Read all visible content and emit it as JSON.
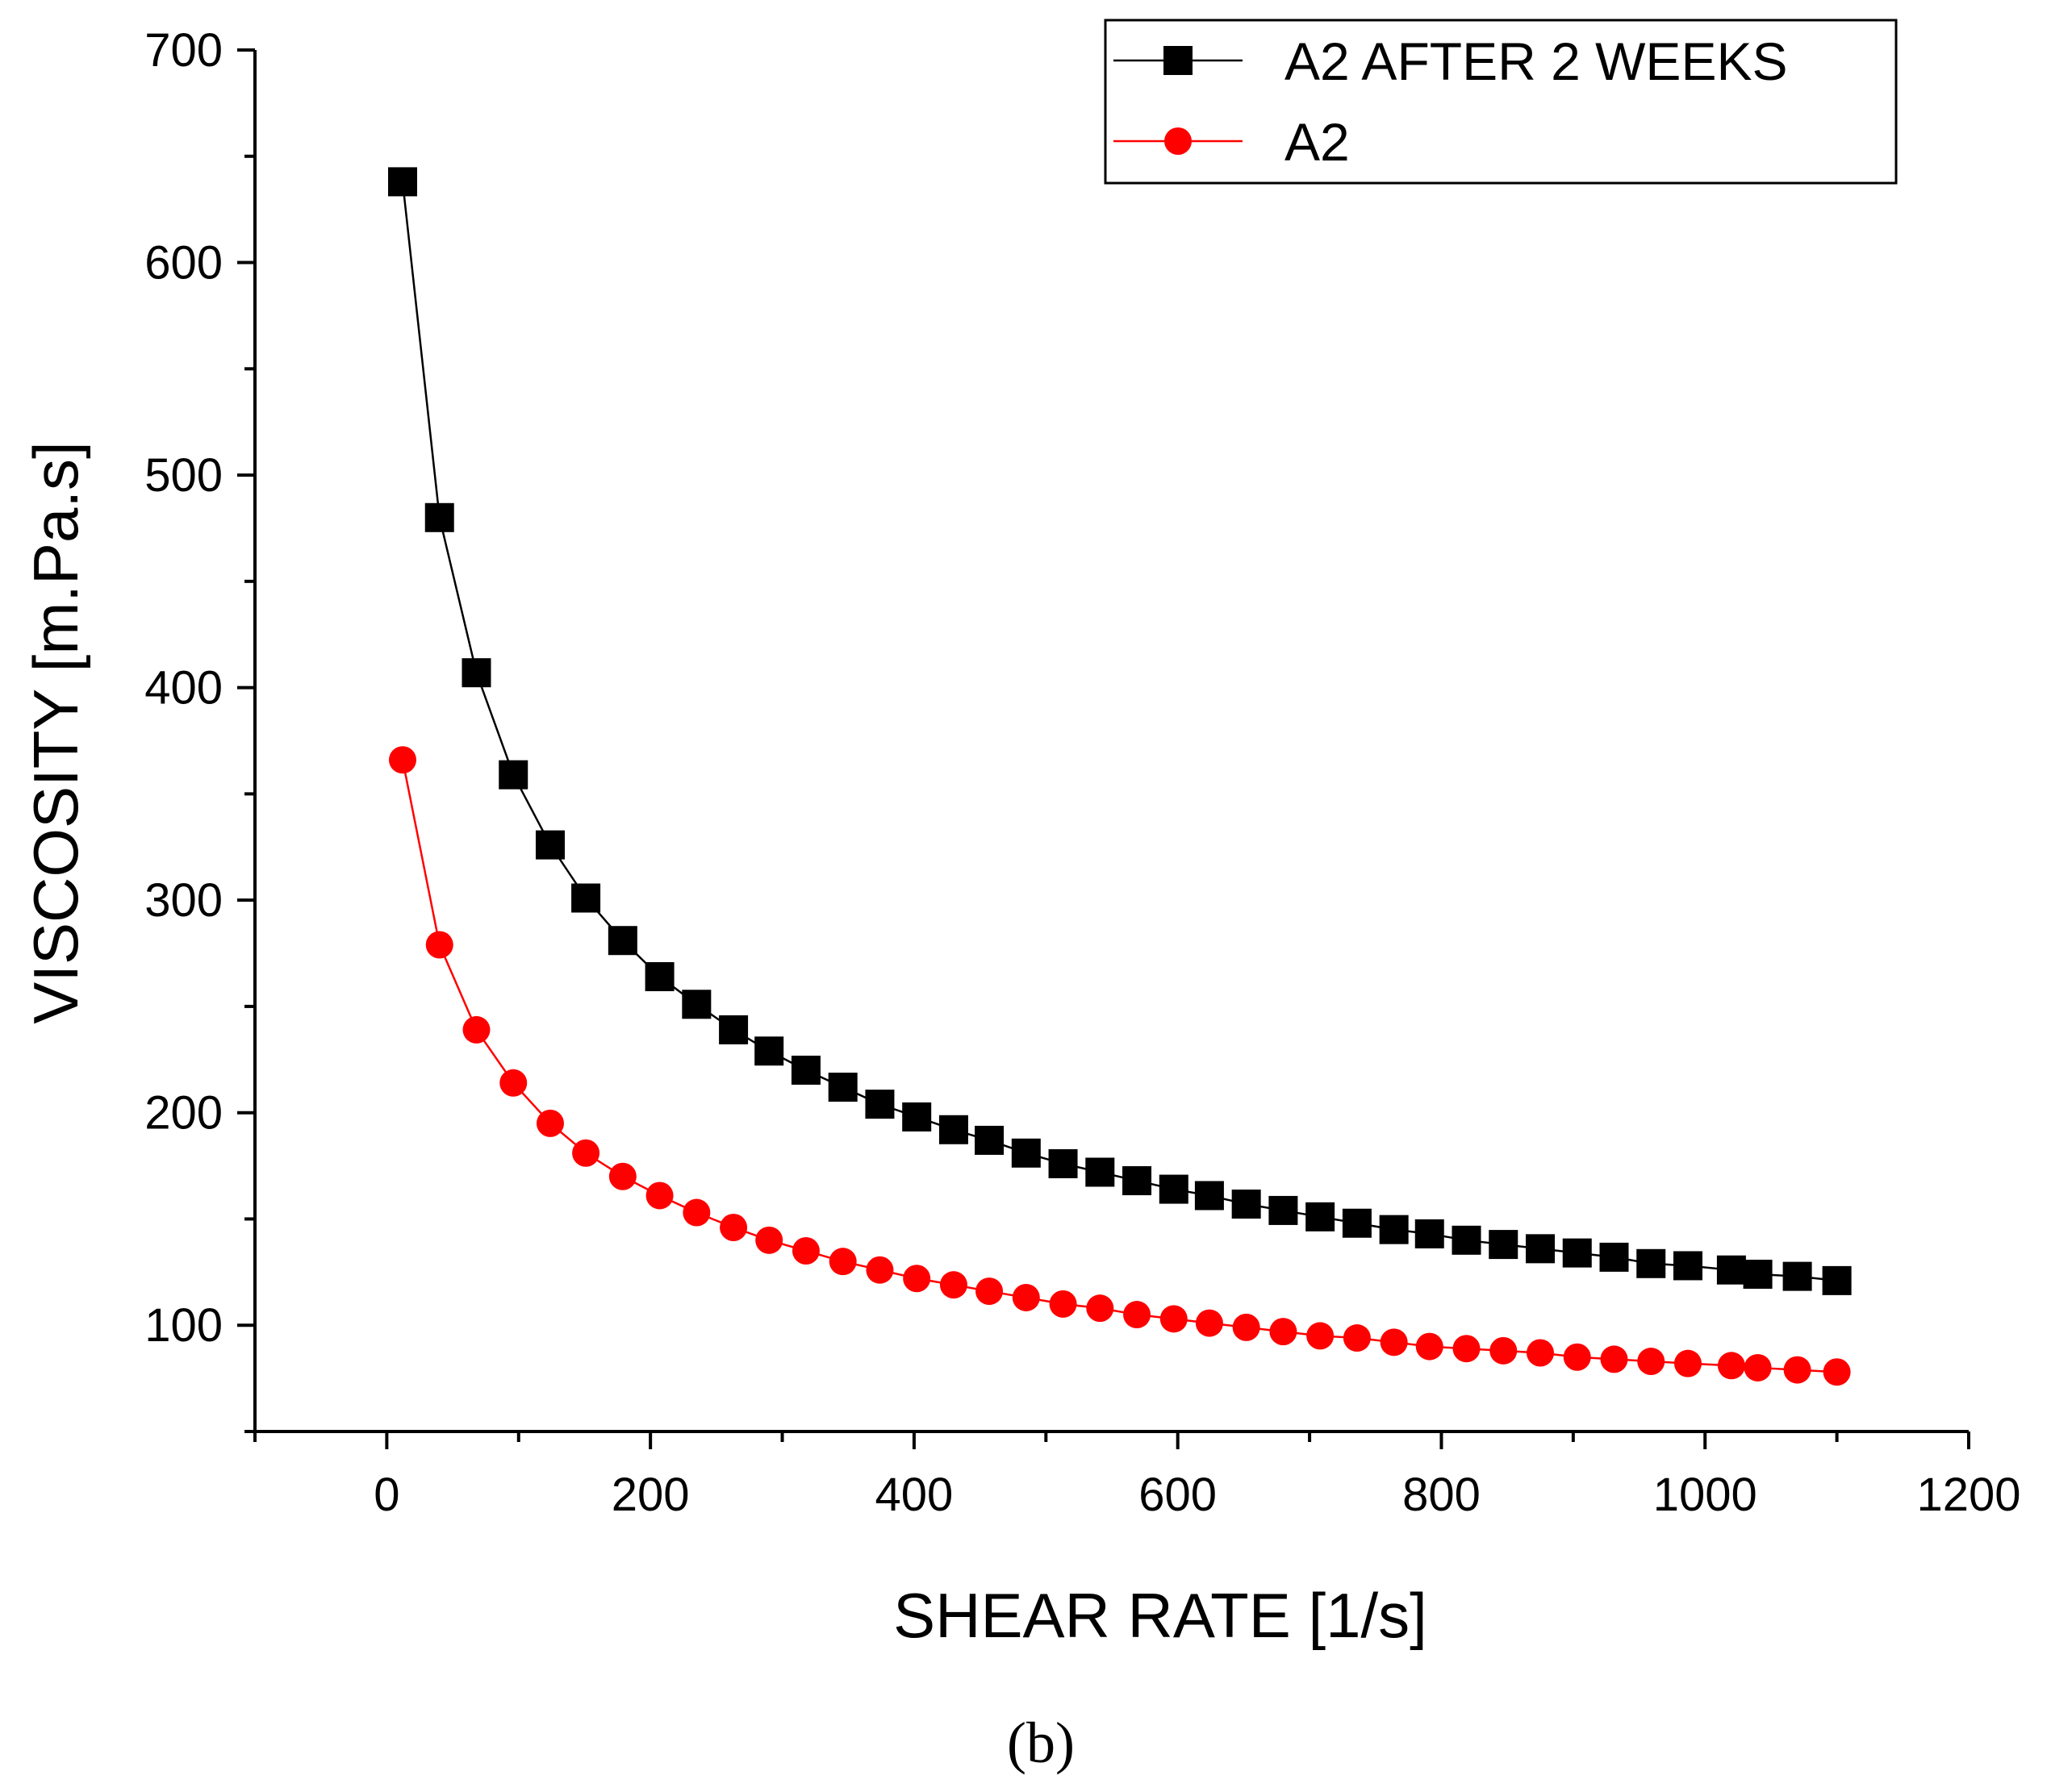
{
  "chart_data": {
    "type": "line",
    "xlabel": "SHEAR RATE [1/s]",
    "ylabel": "VISCOSITY [m.Pa.s]",
    "xlim": [
      -100,
      1200
    ],
    "ylim": [
      50,
      700
    ],
    "xticks": [
      0,
      200,
      400,
      600,
      800,
      1000,
      1200
    ],
    "yticks": [
      100,
      200,
      300,
      400,
      500,
      600,
      700
    ],
    "grid": false,
    "legend_position": "top-right",
    "panel_label": "(b)",
    "series": [
      {
        "name": "A2 AFTER 2 WEEKS",
        "color": "#000000",
        "marker": "square",
        "x": [
          12,
          40,
          68,
          96,
          124,
          151,
          179,
          207,
          235,
          263,
          290,
          318,
          346,
          374,
          402,
          430,
          457,
          485,
          513,
          541,
          569,
          597,
          624,
          652,
          680,
          708,
          736,
          764,
          791,
          819,
          847,
          875,
          903,
          931,
          959,
          987,
          1020,
          1040,
          1070,
          1100
        ],
        "y": [
          638,
          480,
          407,
          359,
          326,
          301,
          281,
          264,
          251,
          239,
          229,
          220,
          212,
          204,
          198,
          192,
          187,
          181,
          176,
          172,
          168,
          164,
          161,
          157,
          154,
          151,
          148,
          145,
          143,
          140,
          138,
          136,
          134,
          132,
          129,
          128,
          126,
          124,
          123,
          121
        ]
      },
      {
        "name": "A2",
        "color": "#ff0000",
        "marker": "circle",
        "x": [
          12,
          40,
          68,
          96,
          124,
          151,
          179,
          207,
          235,
          263,
          290,
          318,
          346,
          374,
          402,
          430,
          457,
          485,
          513,
          541,
          569,
          597,
          624,
          652,
          680,
          708,
          736,
          764,
          791,
          819,
          847,
          875,
          903,
          931,
          959,
          987,
          1020,
          1040,
          1070,
          1100
        ],
        "y": [
          366,
          279,
          239,
          214,
          195,
          181,
          170,
          161,
          153,
          146,
          140,
          135,
          130,
          126,
          122,
          119,
          116,
          113,
          110,
          108,
          105,
          103,
          101,
          99,
          97,
          95,
          94,
          92,
          90,
          89,
          88,
          87,
          85,
          84,
          83,
          82,
          81,
          80,
          79,
          78
        ]
      }
    ]
  }
}
